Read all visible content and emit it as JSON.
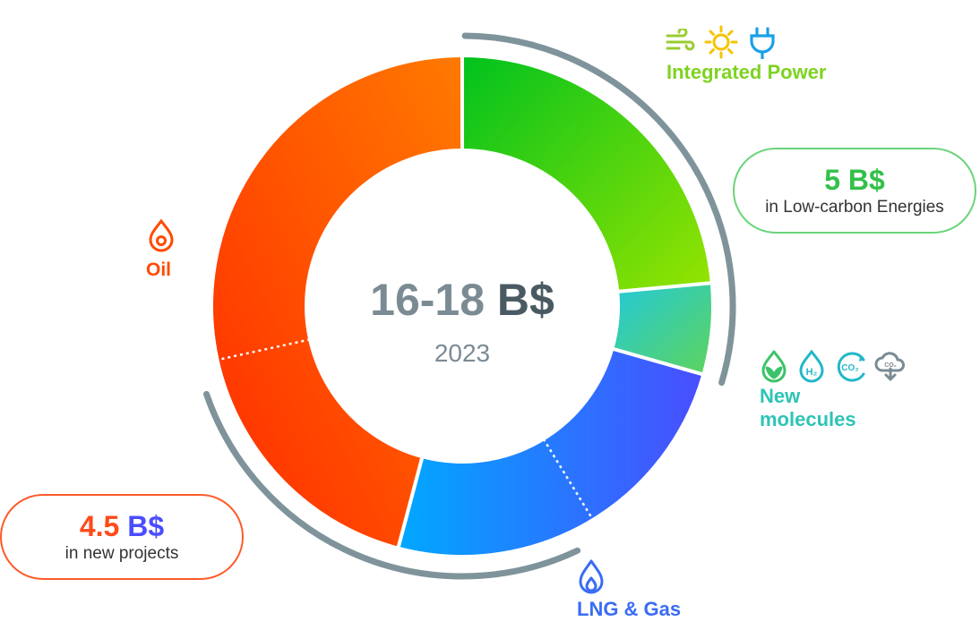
{
  "chart_data": {
    "type": "donut",
    "center_value": "16-18 B$",
    "center_value_parts": [
      "16-18 ",
      "B$"
    ],
    "center_year": "2023",
    "segments": [
      {
        "name": "Integrated Power",
        "value": 4.0,
        "gradient": [
          "#00c21e",
          "#97e400"
        ]
      },
      {
        "name": "New molecules",
        "value": 1.0,
        "gradient": [
          "#22c9da",
          "#5fd45a"
        ]
      },
      {
        "name": "LNG & Gas",
        "value": 4.2,
        "gradient": [
          "#00a8ff",
          "#4a4dff"
        ],
        "divider_at": 0.48
      },
      {
        "name": "Oil",
        "value": 7.8,
        "gradient": [
          "#ff2a00",
          "#ff7a00"
        ],
        "divider_at": 0.38
      }
    ],
    "annotations": [
      {
        "id": "low_carbon",
        "amount": "5 B$",
        "text": "in Low-carbon Energies",
        "spans": [
          "Integrated Power",
          "New molecules"
        ]
      },
      {
        "id": "new_projects",
        "amount": "4.5 B$",
        "text": "in new projects",
        "spans": [
          "Oil",
          "LNG & Gas"
        ]
      }
    ]
  },
  "labels": {
    "integrated_power": "Integrated Power",
    "new_molecules_line1": "New",
    "new_molecules_line2": "molecules",
    "lng_gas": "LNG & Gas",
    "oil": "Oil"
  },
  "pills": {
    "low_carbon_amount": "5 B$",
    "low_carbon_text": "in Low-carbon Energies",
    "new_projects_amount_a": "4.5 ",
    "new_projects_amount_b": "B$",
    "new_projects_text": "in new projects"
  },
  "colors": {
    "power": "#7ed321",
    "molecules": "#2ec4b6",
    "lng": "#3a6cf4",
    "oil": "#ff4a00",
    "center_text": "#7b8b94",
    "center_text_dark": "#4a5a62",
    "bracket": "#7f939b"
  },
  "icons": [
    "wind-icon",
    "sun-icon",
    "plug-icon",
    "leaf-drop-icon",
    "h2-icon",
    "co2-capture-icon",
    "co2-storage-icon",
    "oil-drop-icon",
    "gas-flame-icon"
  ]
}
